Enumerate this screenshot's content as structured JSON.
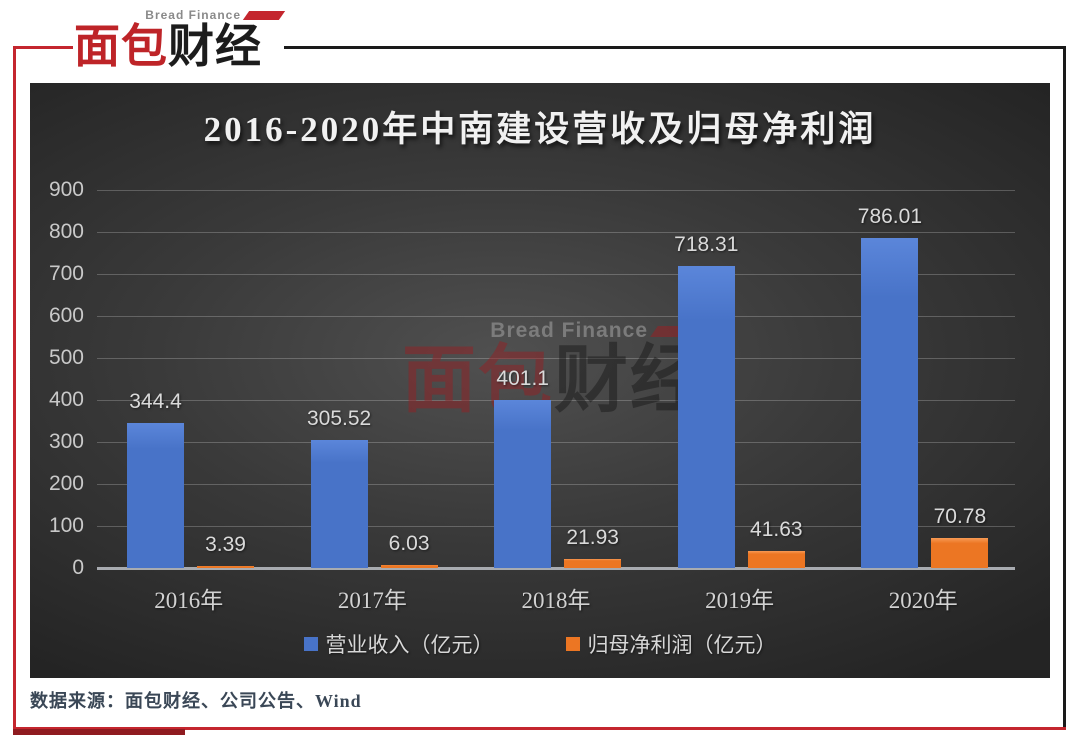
{
  "logo": {
    "subtitle": "Bread Finance",
    "brand_red": "面包",
    "brand_black": "财经"
  },
  "watermark": {
    "subtitle": "Bread Finance",
    "brand_red": "面包",
    "brand_black": "财经"
  },
  "chart_data": {
    "type": "bar",
    "title": "2016-2020年中南建设营收及归母净利润",
    "categories": [
      "2016年",
      "2017年",
      "2018年",
      "2019年",
      "2020年"
    ],
    "series": [
      {
        "name": "营业收入（亿元）",
        "values": [
          344.4,
          305.52,
          401.1,
          718.31,
          786.01
        ],
        "labels": [
          "344.4",
          "305.52",
          "401.1",
          "718.31",
          "786.01"
        ],
        "color": "#4873c8",
        "color_light": "#5b86da"
      },
      {
        "name": "归母净利润（亿元）",
        "values": [
          3.39,
          6.03,
          21.93,
          41.63,
          70.78
        ],
        "labels": [
          "3.39",
          "6.03",
          "21.93",
          "41.63",
          "70.78"
        ],
        "color": "#ec7623",
        "color_light": "#f79a55"
      }
    ],
    "ylim": [
      0,
      900
    ],
    "ytick_step": 100,
    "grid": true,
    "legend_position": "bottom",
    "xlabel": "",
    "ylabel": ""
  },
  "footer": {
    "source": "数据来源：面包财经、公司公告、Wind"
  },
  "colors": {
    "accent_red": "#c4262e",
    "accent_dark_red": "#8f1b20",
    "border_black": "#1a1a1a",
    "panel_text": "#d8d8d8"
  }
}
